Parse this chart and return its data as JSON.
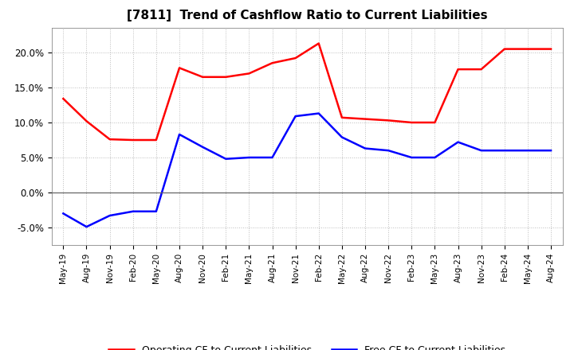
{
  "title": "[7811]  Trend of Cashflow Ratio to Current Liabilities",
  "x_labels": [
    "May-19",
    "Aug-19",
    "Nov-19",
    "Feb-20",
    "May-20",
    "Aug-20",
    "Nov-20",
    "Feb-21",
    "May-21",
    "Aug-21",
    "Nov-21",
    "Feb-22",
    "May-22",
    "Aug-22",
    "Nov-22",
    "Feb-23",
    "May-23",
    "Aug-23",
    "Nov-23",
    "Feb-24",
    "May-24",
    "Aug-24"
  ],
  "operating_cf": [
    0.134,
    0.102,
    0.076,
    0.075,
    0.075,
    0.178,
    0.165,
    0.165,
    0.17,
    0.185,
    0.192,
    0.213,
    0.107,
    0.105,
    0.103,
    0.1,
    0.1,
    0.176,
    0.176,
    0.205,
    0.205,
    0.205
  ],
  "free_cf": [
    -0.03,
    -0.049,
    -0.033,
    -0.027,
    -0.027,
    0.083,
    0.065,
    0.048,
    0.05,
    0.05,
    0.109,
    0.113,
    0.079,
    0.063,
    0.06,
    0.05,
    0.05,
    0.072,
    0.06,
    0.06,
    0.06,
    0.06
  ],
  "operating_color": "#ff0000",
  "free_color": "#0000ff",
  "background_color": "#ffffff",
  "ylim": [
    -0.075,
    0.235
  ],
  "yticks": [
    -0.05,
    0.0,
    0.05,
    0.1,
    0.15,
    0.2
  ],
  "legend_op": "Operating CF to Current Liabilities",
  "legend_free": "Free CF to Current Liabilities"
}
